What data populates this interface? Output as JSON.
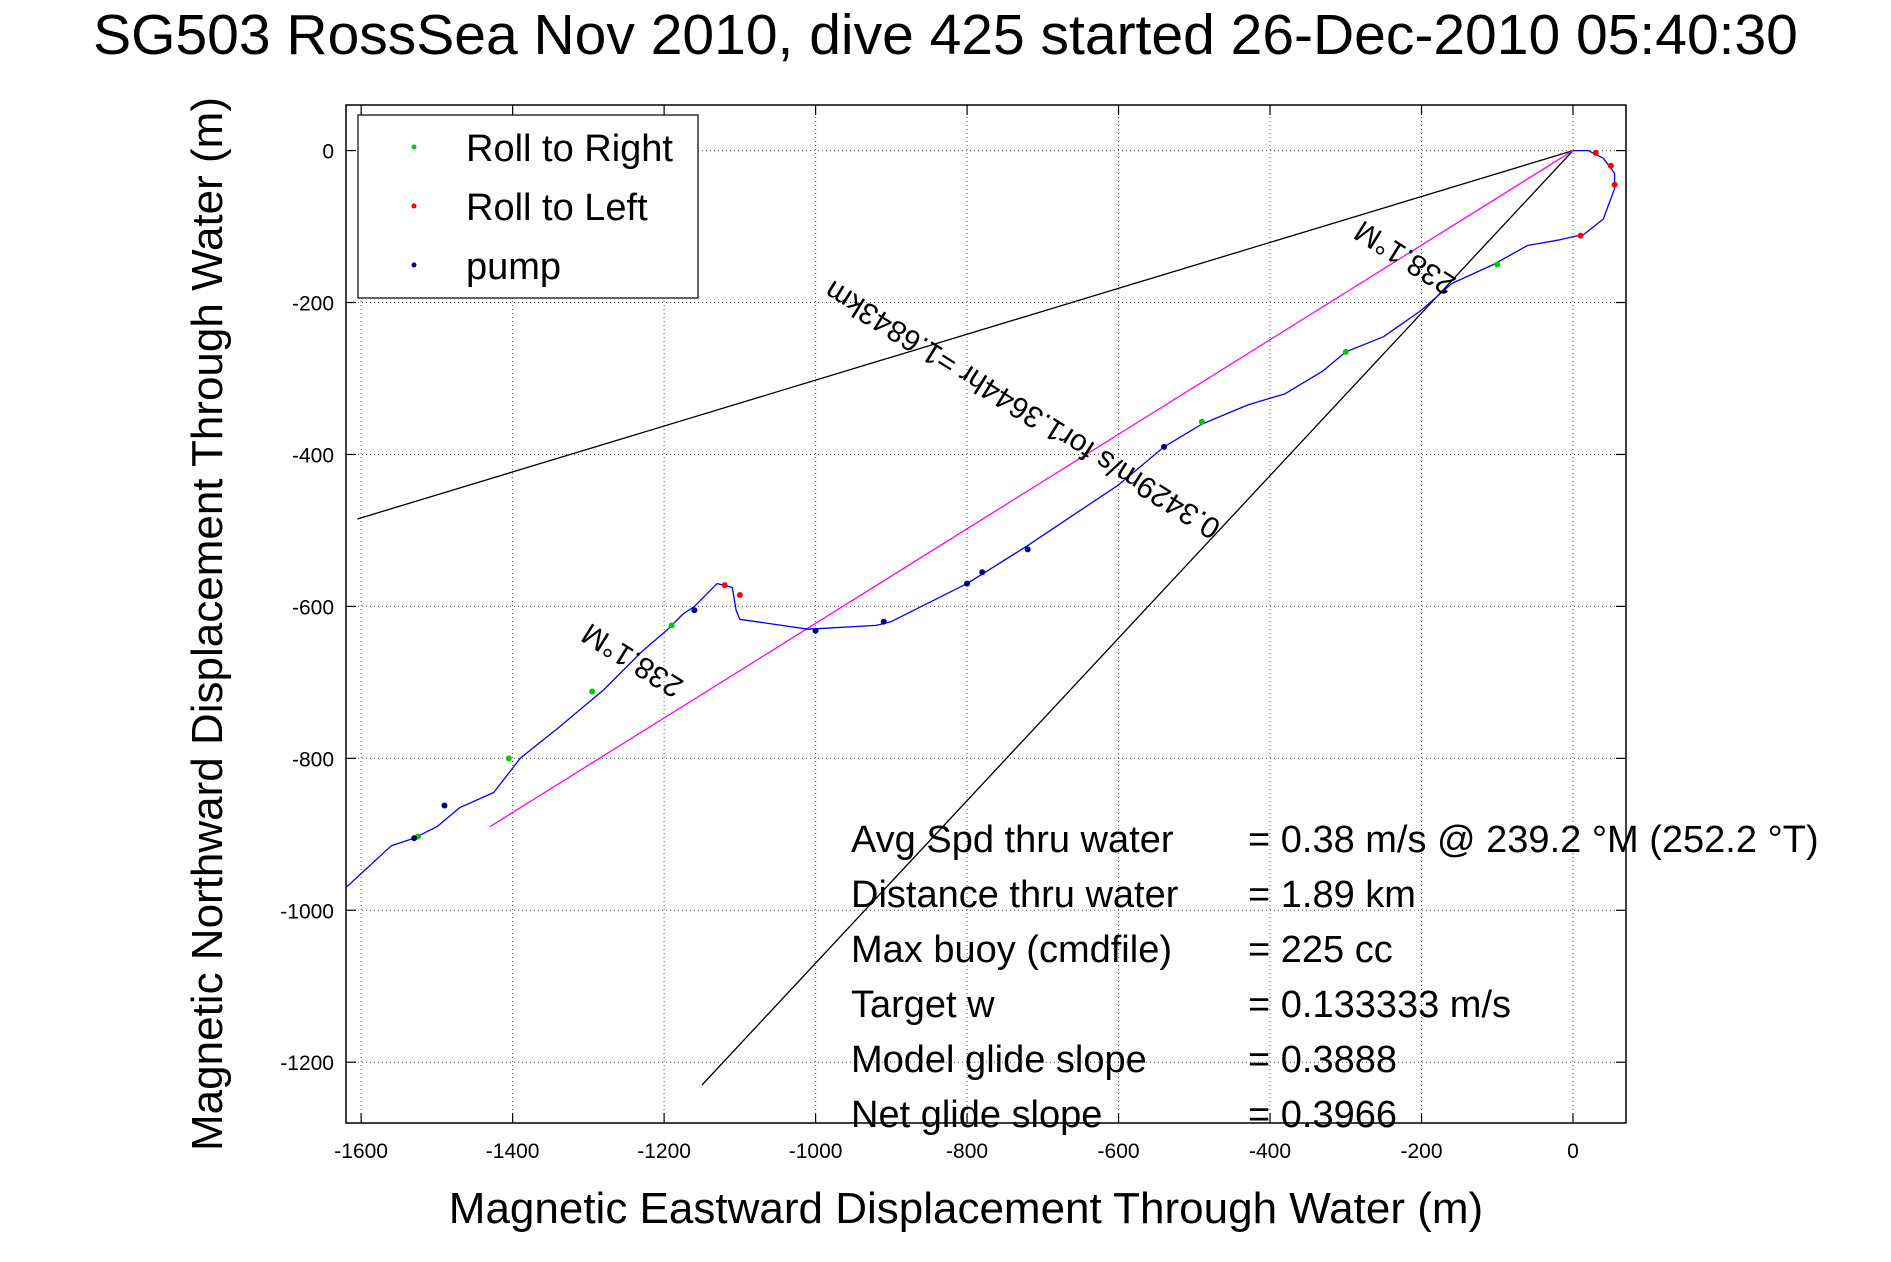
{
  "chart_data": {
    "type": "line",
    "title": "SG503 RossSea Nov 2010, dive 425 started 26-Dec-2010 05:40:30",
    "xlabel": "Magnetic Eastward Displacement Through Water (m)",
    "ylabel": "Magnetic Northward Displacement Through Water (m)",
    "xlim": [
      -1620,
      70
    ],
    "ylim": [
      -1280,
      60
    ],
    "xticks": [
      -1600,
      -1400,
      -1200,
      -1000,
      -800,
      -600,
      -400,
      -200,
      0
    ],
    "yticks": [
      0,
      -200,
      -400,
      -600,
      -800,
      -1000,
      -1200
    ],
    "grid": true,
    "legend": {
      "placement": "top-left",
      "entries": [
        {
          "label": "Roll to Right",
          "color": "#00cc00"
        },
        {
          "label": "Roll to Left",
          "color": "#ff0000"
        },
        {
          "label": "pump",
          "color": "#000080"
        }
      ]
    },
    "track": {
      "color": "#0000ff",
      "x": [
        0,
        20,
        40,
        55,
        55,
        40,
        15,
        -20,
        -60,
        -105,
        -160,
        -200,
        -250,
        -300,
        -330,
        -380,
        -430,
        -490,
        -540,
        -600,
        -660,
        -720,
        -800,
        -900,
        -920,
        -1010,
        -1100,
        -1105,
        -1110,
        -1130,
        -1160,
        -1175,
        -1195,
        -1230,
        -1280,
        -1340,
        -1390,
        -1425,
        -1470,
        -1500,
        -1530,
        -1560,
        -1620
      ],
      "y": [
        0,
        0,
        -10,
        -30,
        -50,
        -90,
        -110,
        -118,
        -125,
        -150,
        -175,
        -210,
        -245,
        -265,
        -290,
        -320,
        -335,
        -360,
        -390,
        -440,
        -480,
        -520,
        -570,
        -620,
        -625,
        -630,
        -617,
        -605,
        -575,
        -570,
        -600,
        -610,
        -630,
        -660,
        -710,
        -760,
        -800,
        -845,
        -865,
        -890,
        -905,
        -915,
        -970
      ]
    },
    "magenta_line": {
      "color": "#ff00ff",
      "x": [
        0,
        -1430
      ],
      "y": [
        0,
        -890
      ]
    },
    "black_lines": [
      {
        "x": [
          0,
          -1605
        ],
        "y": [
          0,
          -485
        ]
      },
      {
        "x": [
          0,
          -1150
        ],
        "y": [
          0,
          -1230
        ]
      }
    ],
    "roll_right_points": {
      "x": [
        -100,
        -300,
        -490,
        -1190,
        -1295,
        -1405,
        -1525
      ],
      "y": [
        -150,
        -265,
        -357,
        -625,
        -712,
        -800,
        -903
      ]
    },
    "roll_left_points": {
      "x": [
        30,
        50,
        55,
        10,
        -1120,
        -1100
      ],
      "y": [
        -3,
        -20,
        -45,
        -112,
        -572,
        -585
      ]
    },
    "pump_points": {
      "x": [
        -540,
        -720,
        -780,
        -800,
        -910,
        -1000,
        -1160,
        -1490,
        -1530
      ],
      "y": [
        -390,
        -525,
        -555,
        -570,
        -620,
        -632,
        -605,
        -862,
        -905
      ]
    },
    "rotated_labels": [
      {
        "text": "0.3429m/s for1.3644hr =1.6843km",
        "x": -720,
        "y": -330,
        "angle": 212
      },
      {
        "text": "238.1°M",
        "x": -215,
        "y": -130,
        "angle": 212
      },
      {
        "text": "238.1°M",
        "x": -1235,
        "y": -660,
        "angle": 212
      }
    ],
    "annotations": [
      {
        "label": "Avg Spd thru water",
        "value": "=  0.38 m/s @ 239.2 °M (252.2 °T)"
      },
      {
        "label": "Distance thru water",
        "value": "=  1.89 km"
      },
      {
        "label": "Max buoy (cmdfile)",
        "value": "= 225 cc"
      },
      {
        "label": "Target w",
        "value": "= 0.133333 m/s"
      },
      {
        "label": "Model glide slope",
        "value": "= 0.3888"
      },
      {
        "label": "Net glide slope",
        "value": "= 0.3966"
      }
    ]
  }
}
